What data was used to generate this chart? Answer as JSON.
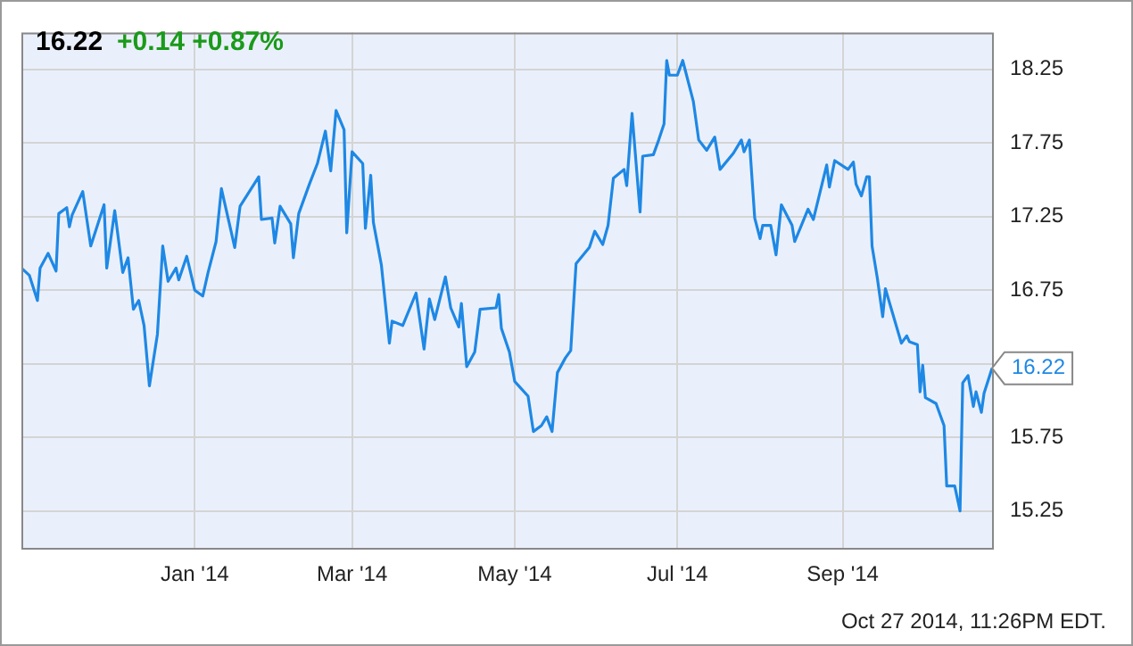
{
  "chart_data": {
    "type": "line",
    "title": "16.22",
    "subtitle": "+0.14 +0.87%",
    "x": [
      "2013-10-28",
      "2013-10-31",
      "2013-11-03",
      "2013-11-04",
      "2013-11-07",
      "2013-11-10",
      "2013-11-11",
      "2013-11-14",
      "2013-11-15",
      "2013-11-16",
      "2013-11-20",
      "2013-11-23",
      "2013-11-28",
      "2013-11-29",
      "2013-12-02",
      "2013-12-05",
      "2013-12-07",
      "2013-12-09",
      "2013-12-11",
      "2013-12-13",
      "2013-12-15",
      "2013-12-18",
      "2013-12-20",
      "2013-12-22",
      "2013-12-25",
      "2013-12-26",
      "2013-12-29",
      "2014-01-01",
      "2014-01-04",
      "2014-01-06",
      "2014-01-09",
      "2014-01-11",
      "2014-01-16",
      "2014-01-18",
      "2014-01-25",
      "2014-01-26",
      "2014-01-30",
      "2014-01-31",
      "2014-02-02",
      "2014-02-06",
      "2014-02-07",
      "2014-02-09",
      "2014-02-13",
      "2014-02-16",
      "2014-02-19",
      "2014-02-21",
      "2014-02-23",
      "2014-02-26",
      "2014-02-27",
      "2014-03-01",
      "2014-03-05",
      "2014-03-06",
      "2014-03-08",
      "2014-03-09",
      "2014-03-12",
      "2014-03-15",
      "2014-03-16",
      "2014-03-20",
      "2014-03-25",
      "2014-03-28",
      "2014-03-30",
      "2014-04-01",
      "2014-04-05",
      "2014-04-07",
      "2014-04-10",
      "2014-04-11",
      "2014-04-13",
      "2014-04-16",
      "2014-04-18",
      "2014-04-24",
      "2014-04-25",
      "2014-04-26",
      "2014-04-29",
      "2014-05-01",
      "2014-05-03",
      "2014-05-06",
      "2014-05-08",
      "2014-05-11",
      "2014-05-13",
      "2014-05-15",
      "2014-05-17",
      "2014-05-20",
      "2014-05-22",
      "2014-05-24",
      "2014-05-29",
      "2014-05-31",
      "2014-06-03",
      "2014-06-05",
      "2014-06-07",
      "2014-06-11",
      "2014-06-12",
      "2014-06-14",
      "2014-06-17",
      "2014-06-18",
      "2014-06-22",
      "2014-06-24",
      "2014-06-26",
      "2014-06-27",
      "2014-06-28",
      "2014-07-01",
      "2014-07-03",
      "2014-07-07",
      "2014-07-09",
      "2014-07-12",
      "2014-07-15",
      "2014-07-17",
      "2014-07-22",
      "2014-07-25",
      "2014-07-26",
      "2014-07-28",
      "2014-07-30",
      "2014-08-01",
      "2014-08-02",
      "2014-08-05",
      "2014-08-07",
      "2014-08-09",
      "2014-08-13",
      "2014-08-14",
      "2014-08-19",
      "2014-08-21",
      "2014-08-26",
      "2014-08-27",
      "2014-08-29",
      "2014-09-03",
      "2014-09-05",
      "2014-09-06",
      "2014-09-08",
      "2014-09-10",
      "2014-09-11",
      "2014-09-12",
      "2014-09-14",
      "2014-09-16",
      "2014-09-17",
      "2014-09-23",
      "2014-09-25",
      "2014-09-26",
      "2014-09-29",
      "2014-09-30",
      "2014-10-01",
      "2014-10-02",
      "2014-10-06",
      "2014-10-09",
      "2014-10-10",
      "2014-10-13",
      "2014-10-15",
      "2014-10-16",
      "2014-10-18",
      "2014-10-20",
      "2014-10-21",
      "2014-10-23",
      "2014-10-24",
      "2014-10-27"
    ],
    "series": [
      {
        "color": "#1e88e5",
        "values": [
          16.9,
          16.85,
          16.68,
          16.9,
          17.0,
          16.88,
          17.27,
          17.31,
          17.18,
          17.26,
          17.42,
          17.05,
          17.33,
          16.9,
          17.29,
          16.87,
          16.97,
          16.62,
          16.68,
          16.51,
          16.1,
          16.45,
          17.05,
          16.81,
          16.9,
          16.82,
          16.98,
          16.75,
          16.71,
          16.87,
          17.08,
          17.44,
          17.04,
          17.32,
          17.52,
          17.23,
          17.24,
          17.07,
          17.32,
          17.2,
          16.97,
          17.27,
          17.47,
          17.61,
          17.83,
          17.56,
          17.97,
          17.84,
          17.14,
          17.69,
          17.61,
          17.17,
          17.53,
          17.21,
          16.92,
          16.39,
          16.54,
          16.51,
          16.73,
          16.35,
          16.69,
          16.55,
          16.84,
          16.63,
          16.5,
          16.66,
          16.23,
          16.33,
          16.62,
          16.63,
          16.72,
          16.49,
          16.33,
          16.13,
          16.09,
          16.03,
          15.79,
          15.83,
          15.89,
          15.79,
          16.19,
          16.29,
          16.34,
          16.93,
          17.04,
          17.15,
          17.06,
          17.19,
          17.51,
          17.57,
          17.46,
          17.95,
          17.28,
          17.66,
          17.67,
          17.77,
          17.88,
          18.31,
          18.21,
          18.21,
          18.31,
          18.03,
          17.77,
          17.7,
          17.79,
          17.57,
          17.68,
          17.77,
          17.69,
          17.77,
          17.24,
          17.1,
          17.19,
          17.19,
          16.99,
          17.33,
          17.19,
          17.08,
          17.3,
          17.23,
          17.6,
          17.45,
          17.63,
          17.57,
          17.62,
          17.47,
          17.39,
          17.52,
          17.52,
          17.05,
          16.83,
          16.57,
          16.76,
          16.39,
          16.44,
          16.4,
          16.38,
          16.06,
          16.24,
          16.02,
          15.98,
          15.83,
          15.42,
          15.42,
          15.25,
          16.12,
          16.17,
          15.96,
          16.06,
          15.92,
          16.05,
          16.22
        ]
      }
    ],
    "xlim": [
      "2013-10-28",
      "2014-10-27"
    ],
    "xticks": [
      {
        "value": "2014-01-01",
        "label": "Jan '14"
      },
      {
        "value": "2014-03-01",
        "label": "Mar '14"
      },
      {
        "value": "2014-05-01",
        "label": "May '14"
      },
      {
        "value": "2014-07-01",
        "label": "Jul '14"
      },
      {
        "value": "2014-09-01",
        "label": "Sep '14"
      }
    ],
    "ylim": [
      15.0,
      18.5
    ],
    "yticks": [
      15.25,
      15.75,
      {
        "value": 16.25,
        "label": null
      },
      16.75,
      17.25,
      17.75,
      18.25
    ],
    "annotations": [
      {
        "text": "16.22",
        "x": "2014-10-27",
        "y": 16.22
      },
      "Oct 27 2014, 11:26PM EDT."
    ],
    "grid": true,
    "legend": false,
    "marker": "none",
    "line_style": "solid"
  }
}
